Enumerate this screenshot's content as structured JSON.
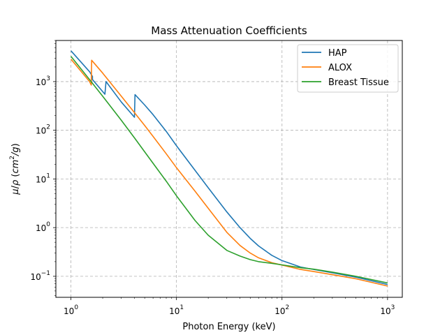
{
  "chart_data": {
    "type": "line",
    "title": "Mass Attenuation Coefficients",
    "xlabel": "Photon Energy (keV)",
    "ylabel_parts": {
      "mu": "μ",
      "slash": "/",
      "rho": "ρ",
      "open": " (",
      "cm": "cm",
      "sup": "2",
      "g": "/g",
      "close": ")"
    },
    "xscale": "log",
    "yscale": "log",
    "xlim": [
      0.72,
      1380
    ],
    "ylim": [
      0.037,
      7000
    ],
    "grid": true,
    "legend_position": "top-right",
    "x_ticks": [
      {
        "value": 1,
        "base": "10",
        "exp": "0"
      },
      {
        "value": 10,
        "base": "10",
        "exp": "1"
      },
      {
        "value": 100,
        "base": "10",
        "exp": "2"
      },
      {
        "value": 1000,
        "base": "10",
        "exp": "3"
      }
    ],
    "y_ticks": [
      {
        "value": 0.1,
        "base": "10",
        "exp": "−1"
      },
      {
        "value": 1,
        "base": "10",
        "exp": "0"
      },
      {
        "value": 10,
        "base": "10",
        "exp": "1"
      },
      {
        "value": 100,
        "base": "10",
        "exp": "2"
      },
      {
        "value": 1000,
        "base": "10",
        "exp": "3"
      }
    ],
    "series": [
      {
        "name": "HAP",
        "color": "#1f77b4",
        "points": [
          [
            1,
            4300
          ],
          [
            1.5,
            1600
          ],
          [
            1.6,
            1280
          ],
          [
            1.6,
            1100
          ],
          [
            2.1,
            550
          ],
          [
            2.15,
            1000
          ],
          [
            3,
            380
          ],
          [
            4.0,
            185
          ],
          [
            4.05,
            540
          ],
          [
            5,
            330
          ],
          [
            6,
            210
          ],
          [
            8,
            95
          ],
          [
            10,
            48
          ],
          [
            15,
            15
          ],
          [
            20,
            6.6
          ],
          [
            30,
            2.1
          ],
          [
            40,
            1.0
          ],
          [
            50,
            0.6
          ],
          [
            60,
            0.42
          ],
          [
            80,
            0.27
          ],
          [
            100,
            0.21
          ],
          [
            150,
            0.155
          ],
          [
            200,
            0.138
          ],
          [
            300,
            0.118
          ],
          [
            500,
            0.096
          ],
          [
            1000,
            0.068
          ]
        ]
      },
      {
        "name": "ALOX",
        "color": "#ff7f0e",
        "points": [
          [
            1,
            2900
          ],
          [
            1.5,
            1000
          ],
          [
            1.56,
            850
          ],
          [
            1.57,
            2750
          ],
          [
            2,
            1500
          ],
          [
            3,
            500
          ],
          [
            4,
            230
          ],
          [
            5,
            125
          ],
          [
            6,
            75
          ],
          [
            8,
            33
          ],
          [
            10,
            17
          ],
          [
            15,
            5.6
          ],
          [
            20,
            2.5
          ],
          [
            30,
            0.8
          ],
          [
            40,
            0.43
          ],
          [
            50,
            0.3
          ],
          [
            60,
            0.24
          ],
          [
            80,
            0.19
          ],
          [
            100,
            0.17
          ],
          [
            150,
            0.138
          ],
          [
            200,
            0.125
          ],
          [
            300,
            0.108
          ],
          [
            500,
            0.089
          ],
          [
            1000,
            0.063
          ]
        ]
      },
      {
        "name": "Breast Tissue",
        "color": "#2ca02c",
        "points": [
          [
            1,
            3300
          ],
          [
            1.5,
            1100
          ],
          [
            2,
            500
          ],
          [
            3,
            160
          ],
          [
            4,
            70
          ],
          [
            5,
            36
          ],
          [
            6,
            21
          ],
          [
            8,
            9
          ],
          [
            10,
            4.5
          ],
          [
            15,
            1.4
          ],
          [
            20,
            0.7
          ],
          [
            30,
            0.34
          ],
          [
            40,
            0.26
          ],
          [
            50,
            0.22
          ],
          [
            60,
            0.2
          ],
          [
            80,
            0.185
          ],
          [
            100,
            0.172
          ],
          [
            150,
            0.15
          ],
          [
            200,
            0.14
          ],
          [
            300,
            0.122
          ],
          [
            500,
            0.1
          ],
          [
            1000,
            0.073
          ]
        ]
      }
    ]
  }
}
